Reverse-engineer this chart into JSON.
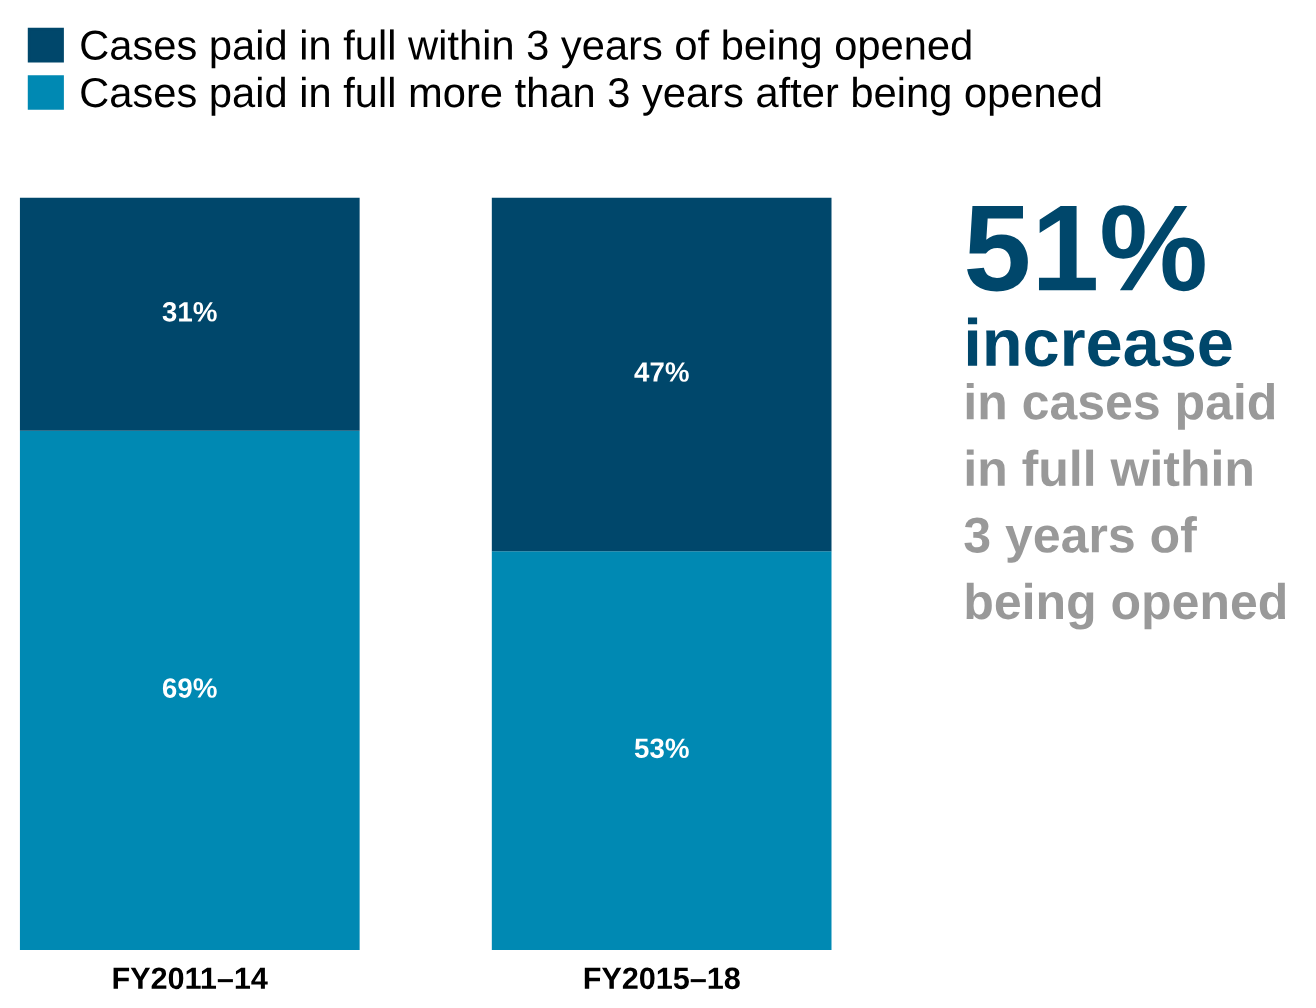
{
  "chart_data": {
    "type": "bar",
    "stacked": true,
    "categories": [
      "FY2011–14",
      "FY2015–18"
    ],
    "series": [
      {
        "name": "Cases paid in full more than 3 years after being opened",
        "color": "#0089b3",
        "values": [
          69,
          53
        ],
        "value_labels": [
          "69%",
          "53%"
        ]
      },
      {
        "name": "Cases paid in full within 3 years of being opened",
        "color": "#00476b",
        "values": [
          31,
          47
        ],
        "value_labels": [
          "31%",
          "47%"
        ]
      }
    ],
    "legend": "top",
    "annotations": [
      "51%",
      "increase",
      "in cases paid\nin full within\n3 years of\nbeing opened"
    ]
  }
}
